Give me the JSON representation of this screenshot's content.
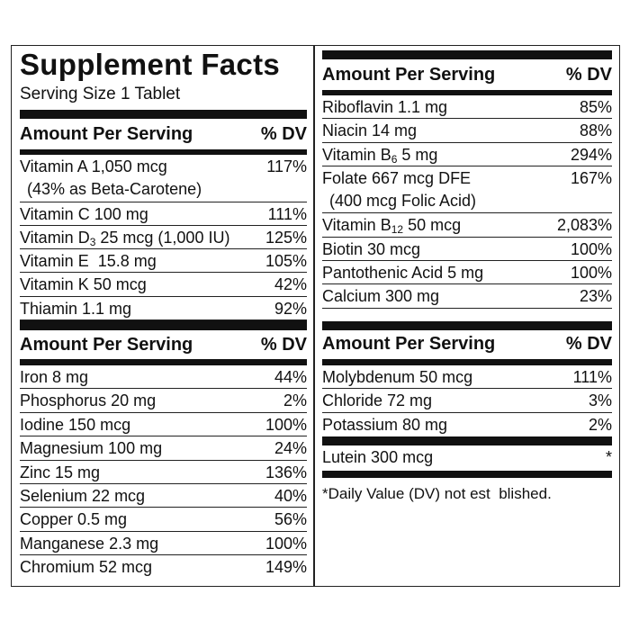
{
  "title": "Supplement Facts",
  "serving_size": "Serving Size 1 Tablet",
  "header": {
    "amount": "Amount Per Serving",
    "dv": "% DV"
  },
  "sections": {
    "left_vitamins": [
      {
        "name": "Vitamin A 1,050 mcg",
        "line2": "(43% as Beta-Carotene)",
        "dv": "117%"
      },
      {
        "name": "Vitamin C 100 mg",
        "dv": "111%"
      },
      {
        "name": "Vitamin D",
        "sub": "3",
        "after": " 25 mcg (1,000 IU)",
        "dv": "125%"
      },
      {
        "name": "Vitamin E  15.8 mg",
        "dv": "105%"
      },
      {
        "name": "Vitamin K 50 mcg",
        "dv": "42%"
      },
      {
        "name": "Thiamin 1.1 mg",
        "dv": "92%"
      }
    ],
    "left_minerals": [
      {
        "name": "Iron 8 mg",
        "dv": "44%"
      },
      {
        "name": "Phosphorus 20 mg",
        "dv": "2%"
      },
      {
        "name": "Iodine 150 mcg",
        "dv": "100%"
      },
      {
        "name": "Magnesium 100 mg",
        "dv": "24%"
      },
      {
        "name": "Zinc 15 mg",
        "dv": "136%"
      },
      {
        "name": "Selenium 22 mcg",
        "dv": "40%"
      },
      {
        "name": "Copper 0.5 mg",
        "dv": "56%"
      },
      {
        "name": "Manganese 2.3 mg",
        "dv": "100%"
      },
      {
        "name": "Chromium 52 mcg",
        "dv": "149%"
      }
    ],
    "right_vitamins": [
      {
        "name": "Riboflavin 1.1 mg",
        "dv": "85%"
      },
      {
        "name": "Niacin 14 mg",
        "dv": "88%"
      },
      {
        "name": "Vitamin B",
        "sub": "6",
        "after": " 5 mg",
        "dv": "294%"
      },
      {
        "name": "Folate 667 mcg DFE",
        "line2": "(400 mcg Folic Acid)",
        "dv": "167%"
      },
      {
        "name": "Vitamin B",
        "sub": "12",
        "after": " 50 mcg",
        "dv": "2,083%"
      },
      {
        "name": "Biotin 30 mcg",
        "dv": "100%"
      },
      {
        "name": "Pantothenic Acid 5 mg",
        "dv": "100%"
      },
      {
        "name": "Calcium 300 mg",
        "dv": "23%"
      }
    ],
    "right_minerals": [
      {
        "name": "Molybdenum 50 mcg",
        "dv": "111%"
      },
      {
        "name": "Chloride 72 mg",
        "dv": "3%"
      },
      {
        "name": "Potassium 80 mg",
        "dv": "2%"
      }
    ],
    "right_other": [
      {
        "name": "Lutein 300 mcg",
        "dv": "*"
      }
    ]
  },
  "footnote": "*Daily Value (DV) not est  blished."
}
